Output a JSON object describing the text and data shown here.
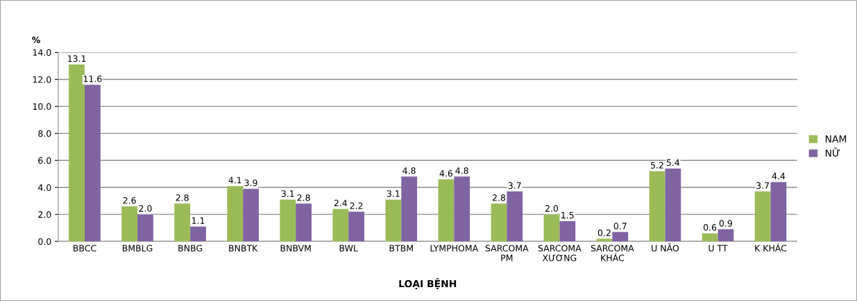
{
  "chart_data": {
    "type": "bar",
    "ylabel": "%",
    "xlabel": "LOẠI BỆNH",
    "categories": [
      "BBCC",
      "BMBLG",
      "BNBG",
      "BNBTK",
      "BNBVM",
      "BWL",
      "BTBM",
      "LYMPHOMA",
      "SARCOMA\nPM",
      "SARCOMA\nXƯƠNG",
      "SARCOMA\nKHÁC",
      "U NÃO",
      "U TT",
      "K KHÁC"
    ],
    "series": [
      {
        "name": "NAM",
        "color": "#9bbb59",
        "values": [
          13.1,
          2.6,
          2.8,
          4.1,
          3.1,
          2.4,
          3.1,
          4.6,
          2.8,
          2.0,
          0.2,
          5.2,
          0.6,
          3.7
        ],
        "value_labels": [
          "13.1",
          "2.6",
          "2.8",
          "4.1",
          "3.1",
          "2.4",
          "3.1",
          "4.6",
          "2.8",
          "2.0",
          "0.2",
          "5.2",
          "0.6",
          "3.7"
        ]
      },
      {
        "name": "NỮ",
        "color": "#8064a2",
        "values": [
          11.6,
          2.0,
          1.1,
          3.9,
          2.8,
          2.2,
          4.8,
          4.8,
          3.7,
          1.5,
          0.7,
          5.4,
          0.9,
          4.4
        ],
        "value_labels": [
          "11.6",
          "2.0",
          "1.1",
          "3.9",
          "2.8",
          "2.2",
          "4.8",
          "4.8",
          "3.7",
          "1.5",
          "0.7",
          "5.4",
          "0.9",
          "4.4"
        ]
      }
    ],
    "ylim": [
      0,
      14
    ],
    "yticks": [
      {
        "value": 0,
        "label": "0.0"
      },
      {
        "value": 2,
        "label": "2.0"
      },
      {
        "value": 4,
        "label": "4.0"
      },
      {
        "value": 6,
        "label": "6.0"
      },
      {
        "value": 8,
        "label": "8.0"
      },
      {
        "value": 10,
        "label": "10.0"
      },
      {
        "value": 12,
        "label": "12.0"
      },
      {
        "value": 14,
        "label": "14.0"
      }
    ],
    "grid": "y",
    "legend": "right"
  }
}
